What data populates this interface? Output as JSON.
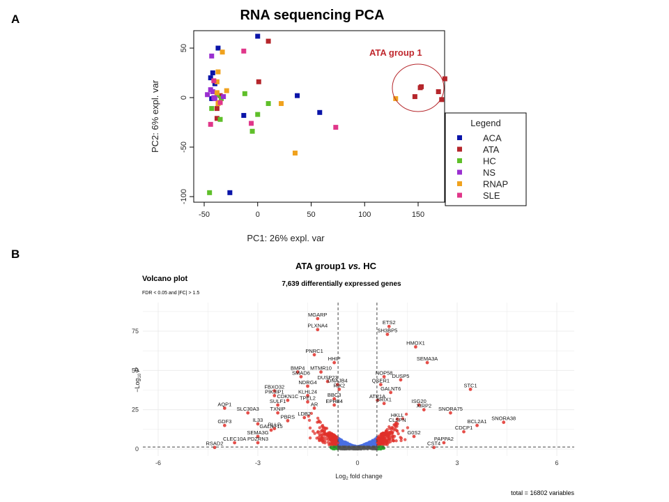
{
  "panels": {
    "a_label": "A",
    "b_label": "B"
  },
  "chart_data": [
    {
      "type": "scatter",
      "title": "RNA sequencing PCA",
      "xlabel": "PC1: 26% expl. var",
      "ylabel": "PC2: 6% expl. var",
      "xlim": [
        -50,
        175
      ],
      "ylim": [
        -105,
        68
      ],
      "x_ticks": [
        -50,
        0,
        50,
        100,
        150
      ],
      "y_ticks": [
        -100,
        -50,
        0,
        50
      ],
      "grid": false,
      "legend": {
        "title": "Legend",
        "placement": "right",
        "entries": [
          {
            "name": "ACA",
            "color": "#0a14a8"
          },
          {
            "name": "ATA",
            "color": "#b5262b"
          },
          {
            "name": "HC",
            "color": "#5fbf2a"
          },
          {
            "name": "NS",
            "color": "#9a2fd0"
          },
          {
            "name": "RNAP",
            "color": "#f0a21e"
          },
          {
            "name": "SLE",
            "color": "#e0368a"
          }
        ]
      },
      "annotation": {
        "text": "ATA group 1",
        "color": "#c0282e",
        "circle_center": [
          158,
          8
        ]
      },
      "series": [
        {
          "name": "ACA",
          "points": [
            [
              0,
              62
            ],
            [
              -37,
              50
            ],
            [
              -42,
              25
            ],
            [
              -44,
              20
            ],
            [
              -40,
              14
            ],
            [
              -43,
              -1
            ],
            [
              -13,
              -18
            ],
            [
              37,
              2
            ],
            [
              58,
              -15
            ],
            [
              -26,
              -96
            ]
          ]
        },
        {
          "name": "ATA",
          "points": [
            [
              10,
              57
            ],
            [
              1,
              16
            ],
            [
              -38,
              -11
            ],
            [
              -38,
              -21
            ],
            [
              -35,
              2
            ],
            [
              147,
              1
            ],
            [
              152,
              10
            ],
            [
              153,
              11
            ],
            [
              169,
              6
            ],
            [
              175,
              19
            ],
            [
              172,
              -2
            ]
          ]
        },
        {
          "name": "HC",
          "points": [
            [
              -43,
              -11
            ],
            [
              -38,
              3
            ],
            [
              -34,
              -1
            ],
            [
              -12,
              4
            ],
            [
              10,
              -6
            ],
            [
              0,
              -17
            ],
            [
              -5,
              -34
            ],
            [
              -35,
              -22
            ],
            [
              -45,
              -96
            ]
          ]
        },
        {
          "name": "NS",
          "points": [
            [
              -43,
              42
            ],
            [
              -47,
              3
            ],
            [
              -44,
              8
            ],
            [
              -42,
              6
            ],
            [
              -41,
              0
            ],
            [
              -40,
              -1
            ],
            [
              -32,
              1
            ]
          ]
        },
        {
          "name": "RNAP",
          "points": [
            [
              -33,
              46
            ],
            [
              -37,
              26
            ],
            [
              -38,
              16
            ],
            [
              -29,
              7
            ],
            [
              -37,
              -6
            ],
            [
              -36,
              -5
            ],
            [
              22,
              -6
            ],
            [
              35,
              -56
            ],
            [
              129,
              -1
            ],
            [
              -38,
              5
            ]
          ]
        },
        {
          "name": "SLE",
          "points": [
            [
              -13,
              47
            ],
            [
              -41,
              17
            ],
            [
              -44,
              -27
            ],
            [
              -6,
              -26
            ],
            [
              73,
              -30
            ],
            [
              -35,
              -5
            ]
          ]
        }
      ]
    },
    {
      "type": "scatter",
      "title": "Volcano plot",
      "subtitle": "FDR <  0.05  and |FC| >  1.5",
      "header_title": "ATA group1 vs. HC",
      "header_title_parts": [
        "ATA group1 ",
        "vs.",
        " HC"
      ],
      "header_subtitle": "7,639 differentially expressed genes",
      "xlabel": "Log2 fold change",
      "xlabel_main": "Log",
      "xlabel_sub": "2",
      "xlabel_rest": " fold change",
      "ylabel": "-Log10 P",
      "ylabel_main": "−Log",
      "ylabel_sub": "10",
      "ylabel_rest": " P",
      "xlim": [
        -6.5,
        6.5
      ],
      "ylim": [
        -3,
        90
      ],
      "x_ticks": [
        -6,
        -3,
        0,
        3,
        6
      ],
      "y_ticks": [
        0,
        25,
        50,
        75
      ],
      "grid": true,
      "cutoffs": {
        "log2fc": [
          -0.585,
          0.585
        ],
        "pvalue_line": 1.3
      },
      "caption": "total = 16802 variables",
      "colors": {
        "ns": "#555555",
        "log2fc": "#2ca02c",
        "p": "#4a6fe3",
        "p_and_log2fc": "#e0302a"
      },
      "labeled_genes": [
        {
          "gene": "MGARP",
          "x": -1.2,
          "y": 83
        },
        {
          "gene": "PLXNA4",
          "x": -1.2,
          "y": 76
        },
        {
          "gene": "ETS2",
          "x": 0.95,
          "y": 78
        },
        {
          "gene": "SH3BP5",
          "x": 0.9,
          "y": 73
        },
        {
          "gene": "HMOX1",
          "x": 1.75,
          "y": 65
        },
        {
          "gene": "PNRC1",
          "x": -1.3,
          "y": 60
        },
        {
          "gene": "HHIP",
          "x": -0.7,
          "y": 55
        },
        {
          "gene": "SEMA3A",
          "x": 2.1,
          "y": 55
        },
        {
          "gene": "BMP4",
          "x": -1.8,
          "y": 49
        },
        {
          "gene": "MTMR10",
          "x": -1.1,
          "y": 49
        },
        {
          "gene": "SMAD6",
          "x": -1.7,
          "y": 46
        },
        {
          "gene": "NOP58",
          "x": 0.8,
          "y": 46
        },
        {
          "gene": "DUSP23",
          "x": -0.9,
          "y": 43
        },
        {
          "gene": "DUSP5",
          "x": 1.3,
          "y": 44
        },
        {
          "gene": "DNAJB4",
          "x": -0.6,
          "y": 41
        },
        {
          "gene": "QSER1",
          "x": 0.7,
          "y": 41
        },
        {
          "gene": "NDRG4",
          "x": -1.5,
          "y": 40
        },
        {
          "gene": "RIK2",
          "x": -0.55,
          "y": 38
        },
        {
          "gene": "GALNT6",
          "x": 1.0,
          "y": 36
        },
        {
          "gene": "FBXO32",
          "x": -2.5,
          "y": 37
        },
        {
          "gene": "KLHL24",
          "x": -1.5,
          "y": 34
        },
        {
          "gene": "BBC3",
          "x": -0.7,
          "y": 32
        },
        {
          "gene": "PIK3IP1",
          "x": -2.5,
          "y": 34
        },
        {
          "gene": "STC1",
          "x": 3.4,
          "y": 38
        },
        {
          "gene": "CDKN1C",
          "x": -2.1,
          "y": 31
        },
        {
          "gene": "TPEL2",
          "x": -1.5,
          "y": 30
        },
        {
          "gene": "ATP1A",
          "x": 0.6,
          "y": 31
        },
        {
          "gene": "EPHB4",
          "x": -0.7,
          "y": 28
        },
        {
          "gene": "BRIX1",
          "x": 0.8,
          "y": 29
        },
        {
          "gene": "ISG20",
          "x": 1.85,
          "y": 28
        },
        {
          "gene": "SULF1",
          "x": -2.4,
          "y": 28
        },
        {
          "gene": "AR",
          "x": -1.3,
          "y": 26
        },
        {
          "gene": "XIRP2",
          "x": 2.0,
          "y": 25
        },
        {
          "gene": "AQP1",
          "x": -4.0,
          "y": 26
        },
        {
          "gene": "SLC30A3",
          "x": -3.3,
          "y": 23
        },
        {
          "gene": "TXNIP",
          "x": -2.4,
          "y": 23
        },
        {
          "gene": "SNORA75",
          "x": 2.8,
          "y": 23
        },
        {
          "gene": "LDB2",
          "x": -1.6,
          "y": 20
        },
        {
          "gene": "HKLL",
          "x": 1.2,
          "y": 19
        },
        {
          "gene": "PBRS",
          "x": -2.1,
          "y": 18
        },
        {
          "gene": "SNORA38",
          "x": 4.4,
          "y": 17
        },
        {
          "gene": "BCL2A1",
          "x": 3.6,
          "y": 15
        },
        {
          "gene": "GDF3",
          "x": -4.0,
          "y": 15
        },
        {
          "gene": "IL33",
          "x": -3.0,
          "y": 16
        },
        {
          "gene": "CLSPN",
          "x": 1.2,
          "y": 16
        },
        {
          "gene": "GALNT15",
          "x": -2.6,
          "y": 12
        },
        {
          "gene": "PLLP",
          "x": -2.5,
          "y": 13
        },
        {
          "gene": "CDCP1",
          "x": 3.2,
          "y": 11
        },
        {
          "gene": "G0S2",
          "x": 1.7,
          "y": 8
        },
        {
          "gene": "SEMA3G",
          "x": -3.0,
          "y": 8
        },
        {
          "gene": "PAPPA2",
          "x": 2.6,
          "y": 4
        },
        {
          "gene": "CLEC10A",
          "x": -3.7,
          "y": 4
        },
        {
          "gene": "PDZRN3",
          "x": -3.0,
          "y": 4
        },
        {
          "gene": "RSAD2",
          "x": -4.3,
          "y": 1
        },
        {
          "gene": "CST4",
          "x": 2.3,
          "y": 1
        }
      ]
    }
  ]
}
